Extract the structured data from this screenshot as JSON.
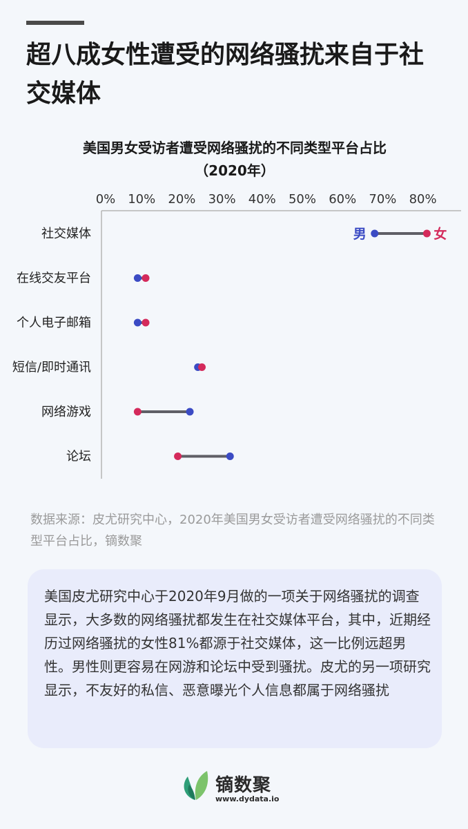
{
  "headline": "超八成女性遭受的网络骚扰来自于社交媒体",
  "source_text": "数据来源：皮尤研究中心，2020年美国男女受访者遭受网络骚扰的不同类型平台占比，镝数聚",
  "card_text": "美国皮尤研究中心于2020年9月做的一项关于网络骚扰的调查显示，大多数的网络骚扰都发生在社交媒体平台，其中，近期经历过网络骚扰的女性81%都源于社交媒体，这一比例远超男性。男性则更容易在网游和论坛中受到骚扰。皮尤的另一项研究显示，不友好的私信、恶意曝光个人信息都属于网络骚扰",
  "logo": {
    "name": "镝数聚",
    "url": "www.dydata.io"
  },
  "colors": {
    "male": "#3b4bc4",
    "female": "#d42a5b",
    "connector": "#5f5f66"
  },
  "chart_data": {
    "type": "dumbbell",
    "title": "美国男女受访者遭受网络骚扰的不同类型平台占比",
    "subtitle": "（2020年）",
    "x_ticks": [
      "0%",
      "10%",
      "20%",
      "30%",
      "40%",
      "50%",
      "60%",
      "70%",
      "80%"
    ],
    "xlim": [
      0,
      90
    ],
    "categories": [
      "社交媒体",
      "在线交友平台",
      "个人电子邮箱",
      "短信/即时通讯",
      "网络游戏",
      "论坛"
    ],
    "series": [
      {
        "name": "男",
        "values": [
          68,
          9,
          9,
          24,
          22,
          32
        ]
      },
      {
        "name": "女",
        "values": [
          81,
          11,
          11,
          25,
          9,
          19
        ]
      }
    ],
    "annotations": {
      "male_label": "男",
      "female_label": "女"
    }
  }
}
